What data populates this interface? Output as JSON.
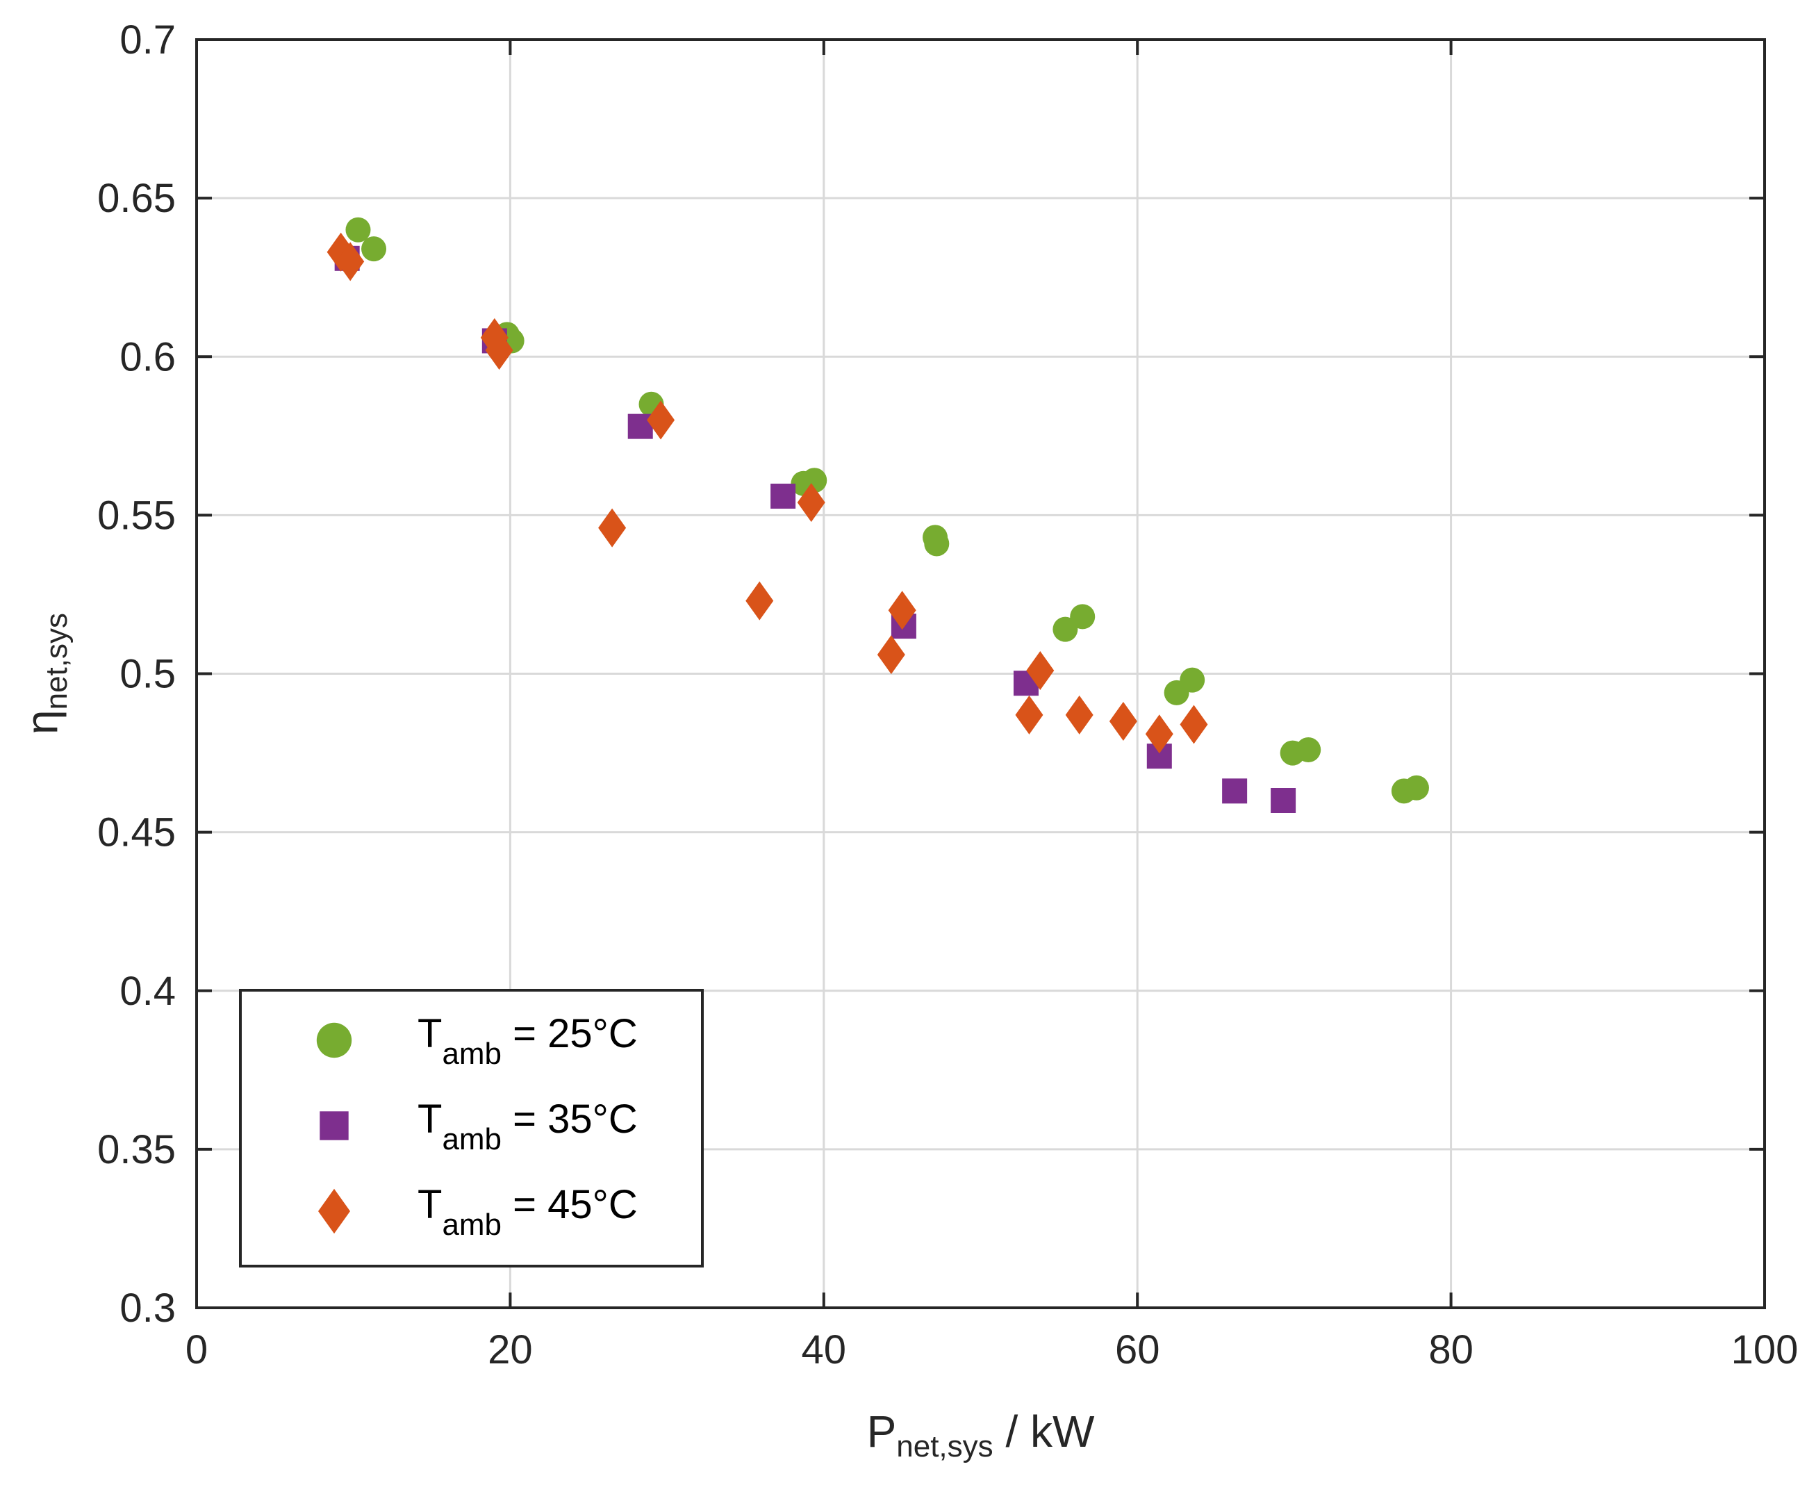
{
  "chart_data": {
    "type": "scatter",
    "title": "",
    "xlabel": {
      "main": "P",
      "sub": "net,sys",
      "suffix": " / kW"
    },
    "ylabel": {
      "main": "η",
      "sub": "net,sys"
    },
    "xlim": [
      0,
      100
    ],
    "ylim": [
      0.3,
      0.7
    ],
    "xticks": [
      0,
      20,
      40,
      60,
      80,
      100
    ],
    "xtick_labels": [
      "0",
      "20",
      "40",
      "60",
      "80",
      "100"
    ],
    "yticks": [
      0.3,
      0.35,
      0.4,
      0.45,
      0.5,
      0.55,
      0.6,
      0.65,
      0.7
    ],
    "ytick_labels": [
      "0.3",
      "0.35",
      "0.4",
      "0.45",
      "0.5",
      "0.55",
      "0.6",
      "0.65",
      "0.7"
    ],
    "grid": true,
    "legend_position": "bottom-left",
    "series": [
      {
        "name": "T_amb = 25°C",
        "legend_label": {
          "main": "T",
          "sub": "amb",
          "suffix": " = 25°C"
        },
        "marker": "circle",
        "color": "#77AC30",
        "points": [
          [
            10.3,
            0.64
          ],
          [
            11.3,
            0.634
          ],
          [
            19.8,
            0.607
          ],
          [
            20.1,
            0.605
          ],
          [
            29.0,
            0.585
          ],
          [
            38.7,
            0.56
          ],
          [
            39.4,
            0.561
          ],
          [
            47.1,
            0.543
          ],
          [
            47.2,
            0.541
          ],
          [
            55.4,
            0.514
          ],
          [
            56.5,
            0.518
          ],
          [
            62.5,
            0.494
          ],
          [
            63.5,
            0.498
          ],
          [
            69.9,
            0.475
          ],
          [
            70.9,
            0.476
          ],
          [
            77.0,
            0.463
          ],
          [
            77.8,
            0.464
          ]
        ]
      },
      {
        "name": "T_amb = 35°C",
        "legend_label": {
          "main": "T",
          "sub": "amb",
          "suffix": " = 35°C"
        },
        "marker": "square",
        "color": "#7E2F8E",
        "points": [
          [
            9.6,
            0.631
          ],
          [
            19.0,
            0.605
          ],
          [
            28.3,
            0.578
          ],
          [
            37.4,
            0.556
          ],
          [
            45.1,
            0.515
          ],
          [
            52.9,
            0.497
          ],
          [
            61.4,
            0.474
          ],
          [
            66.2,
            0.463
          ],
          [
            69.3,
            0.46
          ]
        ]
      },
      {
        "name": "T_amb = 45°C",
        "legend_label": {
          "main": "T",
          "sub": "amb",
          "suffix": " = 45°C"
        },
        "marker": "diamond",
        "color": "#D95319",
        "points": [
          [
            9.2,
            0.633
          ],
          [
            9.8,
            0.63
          ],
          [
            19.0,
            0.606
          ],
          [
            19.3,
            0.602
          ],
          [
            26.5,
            0.546
          ],
          [
            29.6,
            0.58
          ],
          [
            35.9,
            0.523
          ],
          [
            39.2,
            0.554
          ],
          [
            44.3,
            0.506
          ],
          [
            45.0,
            0.52
          ],
          [
            53.1,
            0.487
          ],
          [
            53.8,
            0.501
          ],
          [
            56.3,
            0.487
          ],
          [
            59.1,
            0.485
          ],
          [
            61.4,
            0.481
          ],
          [
            63.6,
            0.484
          ]
        ]
      }
    ]
  }
}
